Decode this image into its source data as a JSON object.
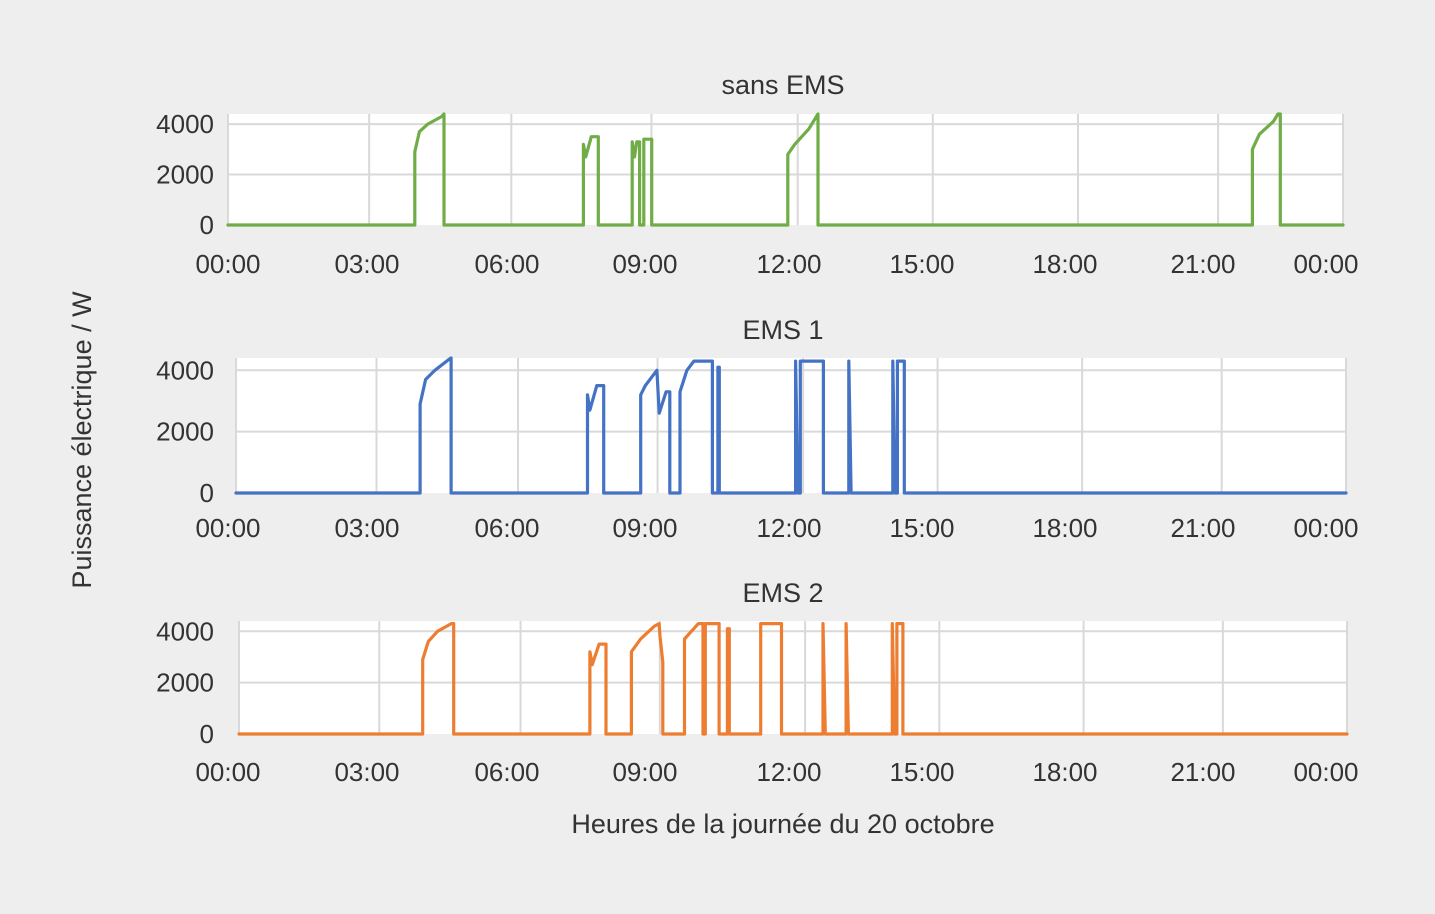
{
  "figure": {
    "ylabel": "Puissance électrique / W",
    "xlabel": "Heures de la journée du 20 octobre"
  },
  "chart_data": [
    {
      "type": "line",
      "title": "sans EMS",
      "color": "#70ad47",
      "xlim": [
        0,
        24
      ],
      "ylim": [
        0,
        4400
      ],
      "yticks": [
        "4000",
        "2000",
        "0"
      ],
      "xticks": [
        "00:00",
        "03:00",
        "06:00",
        "09:00",
        "12:00",
        "15:00",
        "18:00",
        "21:00",
        "00:00"
      ],
      "grid": true,
      "series": [
        {
          "points": [
            [
              0,
              0
            ],
            [
              4.02,
              0
            ],
            [
              4.02,
              2900
            ],
            [
              4.12,
              3700
            ],
            [
              4.3,
              4000
            ],
            [
              4.6,
              4300
            ],
            [
              4.65,
              4400
            ],
            [
              4.65,
              0
            ],
            [
              7.65,
              0
            ],
            [
              7.65,
              3200
            ],
            [
              7.7,
              2700
            ],
            [
              7.82,
              3500
            ],
            [
              7.97,
              3500
            ],
            [
              7.97,
              0
            ],
            [
              8.7,
              0
            ],
            [
              8.7,
              3300
            ],
            [
              8.75,
              2700
            ],
            [
              8.8,
              3300
            ],
            [
              8.86,
              3300
            ],
            [
              8.86,
              0
            ],
            [
              8.95,
              0
            ],
            [
              8.95,
              3400
            ],
            [
              9.12,
              3400
            ],
            [
              9.12,
              0
            ],
            [
              12.05,
              0
            ],
            [
              12.05,
              2800
            ],
            [
              12.2,
              3200
            ],
            [
              12.5,
              3800
            ],
            [
              12.7,
              4400
            ],
            [
              12.7,
              0
            ],
            [
              22.05,
              0
            ],
            [
              22.05,
              3000
            ],
            [
              22.2,
              3600
            ],
            [
              22.5,
              4100
            ],
            [
              22.6,
              4400
            ],
            [
              22.65,
              4400
            ],
            [
              22.65,
              0
            ],
            [
              24,
              0
            ]
          ]
        }
      ]
    },
    {
      "type": "line",
      "title": "EMS 1",
      "color": "#4472c4",
      "xlim": [
        0,
        24
      ],
      "ylim": [
        0,
        4400
      ],
      "yticks": [
        "4000",
        "2000",
        "0"
      ],
      "xticks": [
        "00:00",
        "03:00",
        "06:00",
        "09:00",
        "12:00",
        "15:00",
        "18:00",
        "21:00",
        "00:00"
      ],
      "grid": true,
      "series": [
        {
          "points": [
            [
              0,
              0
            ],
            [
              3.98,
              0
            ],
            [
              3.98,
              2900
            ],
            [
              4.1,
              3700
            ],
            [
              4.3,
              4000
            ],
            [
              4.6,
              4350
            ],
            [
              4.65,
              4400
            ],
            [
              4.65,
              0
            ],
            [
              7.6,
              0
            ],
            [
              7.6,
              3200
            ],
            [
              7.65,
              2700
            ],
            [
              7.8,
              3500
            ],
            [
              7.95,
              3500
            ],
            [
              7.95,
              0
            ],
            [
              8.75,
              0
            ],
            [
              8.75,
              3200
            ],
            [
              8.85,
              3500
            ],
            [
              9.1,
              4000
            ],
            [
              9.15,
              2600
            ],
            [
              9.3,
              3300
            ],
            [
              9.38,
              3300
            ],
            [
              9.38,
              0
            ],
            [
              9.6,
              0
            ],
            [
              9.6,
              3300
            ],
            [
              9.75,
              4000
            ],
            [
              9.9,
              4300
            ],
            [
              10.3,
              4300
            ],
            [
              10.3,
              0
            ],
            [
              10.42,
              0
            ],
            [
              10.42,
              4100
            ],
            [
              10.45,
              4100
            ],
            [
              10.45,
              0
            ],
            [
              12.1,
              0
            ],
            [
              12.1,
              4300
            ],
            [
              12.15,
              0
            ],
            [
              12.2,
              0
            ],
            [
              12.2,
              4300
            ],
            [
              12.7,
              4300
            ],
            [
              12.7,
              0
            ],
            [
              13.25,
              0
            ],
            [
              13.25,
              4300
            ],
            [
              13.3,
              0
            ],
            [
              14.2,
              0
            ],
            [
              14.2,
              4300
            ],
            [
              14.25,
              0
            ],
            [
              14.3,
              0
            ],
            [
              14.3,
              4300
            ],
            [
              14.45,
              4300
            ],
            [
              14.45,
              0
            ],
            [
              24,
              0
            ]
          ]
        }
      ]
    },
    {
      "type": "line",
      "title": "EMS 2",
      "color": "#ed7d31",
      "xlim": [
        0,
        24
      ],
      "ylim": [
        0,
        4400
      ],
      "yticks": [
        "4000",
        "2000",
        "0"
      ],
      "xticks": [
        "00:00",
        "03:00",
        "06:00",
        "09:00",
        "12:00",
        "15:00",
        "18:00",
        "21:00",
        "00:00"
      ],
      "grid": true,
      "series": [
        {
          "points": [
            [
              0,
              0
            ],
            [
              3.98,
              0
            ],
            [
              3.98,
              2900
            ],
            [
              4.1,
              3600
            ],
            [
              4.3,
              4000
            ],
            [
              4.6,
              4300
            ],
            [
              4.65,
              4300
            ],
            [
              4.65,
              0
            ],
            [
              7.6,
              0
            ],
            [
              7.6,
              3200
            ],
            [
              7.65,
              2700
            ],
            [
              7.8,
              3500
            ],
            [
              7.95,
              3500
            ],
            [
              7.95,
              0
            ],
            [
              8.5,
              0
            ],
            [
              8.5,
              3200
            ],
            [
              8.7,
              3700
            ],
            [
              9.0,
              4200
            ],
            [
              9.1,
              4300
            ],
            [
              9.12,
              3800
            ],
            [
              9.18,
              2800
            ],
            [
              9.18,
              0
            ],
            [
              9.65,
              0
            ],
            [
              9.65,
              3700
            ],
            [
              9.8,
              4000
            ],
            [
              9.95,
              4300
            ],
            [
              10.05,
              4300
            ],
            [
              10.05,
              0
            ],
            [
              10.1,
              0
            ],
            [
              10.1,
              4300
            ],
            [
              10.4,
              4300
            ],
            [
              10.4,
              0
            ],
            [
              10.58,
              0
            ],
            [
              10.58,
              4100
            ],
            [
              10.62,
              4100
            ],
            [
              10.62,
              0
            ],
            [
              11.3,
              0
            ],
            [
              11.3,
              4300
            ],
            [
              11.75,
              4300
            ],
            [
              11.75,
              0
            ],
            [
              12.65,
              0
            ],
            [
              12.65,
              4300
            ],
            [
              12.7,
              0
            ],
            [
              13.15,
              0
            ],
            [
              13.15,
              4300
            ],
            [
              13.2,
              0
            ],
            [
              14.15,
              0
            ],
            [
              14.15,
              4300
            ],
            [
              14.2,
              0
            ],
            [
              14.25,
              0
            ],
            [
              14.25,
              4300
            ],
            [
              14.38,
              4300
            ],
            [
              14.38,
              0
            ],
            [
              24,
              0
            ]
          ]
        }
      ]
    }
  ]
}
